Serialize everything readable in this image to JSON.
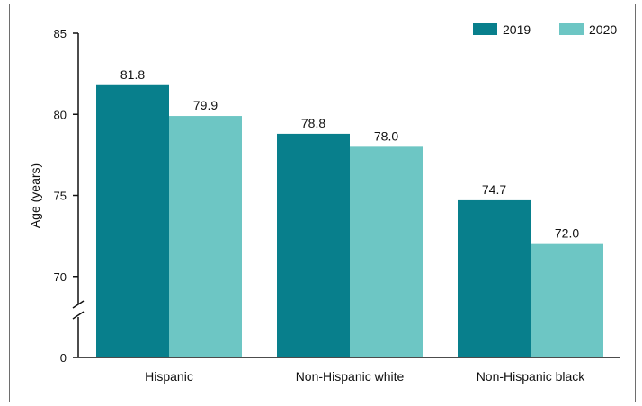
{
  "chart_data": {
    "type": "bar",
    "title": "",
    "xlabel": "",
    "ylabel": "Age (years)",
    "categories": [
      "Hispanic",
      "Non-Hispanic white",
      "Non-Hispanic black"
    ],
    "series": [
      {
        "name": "2019",
        "color": "#087f8c",
        "values": [
          81.8,
          78.8,
          74.7
        ],
        "labels": [
          "81.8",
          "78.8",
          "74.7"
        ]
      },
      {
        "name": "2020",
        "color": "#6dc6c4",
        "values": [
          79.9,
          78.0,
          72.0
        ],
        "labels": [
          "79.9",
          "78.0",
          "72.0"
        ]
      }
    ],
    "ylim": [
      65,
      85
    ],
    "yticks": [
      70,
      75,
      80,
      85
    ],
    "axis_break": true,
    "axis_origin_label": "0",
    "grid": false,
    "legend_position": "top-right"
  }
}
